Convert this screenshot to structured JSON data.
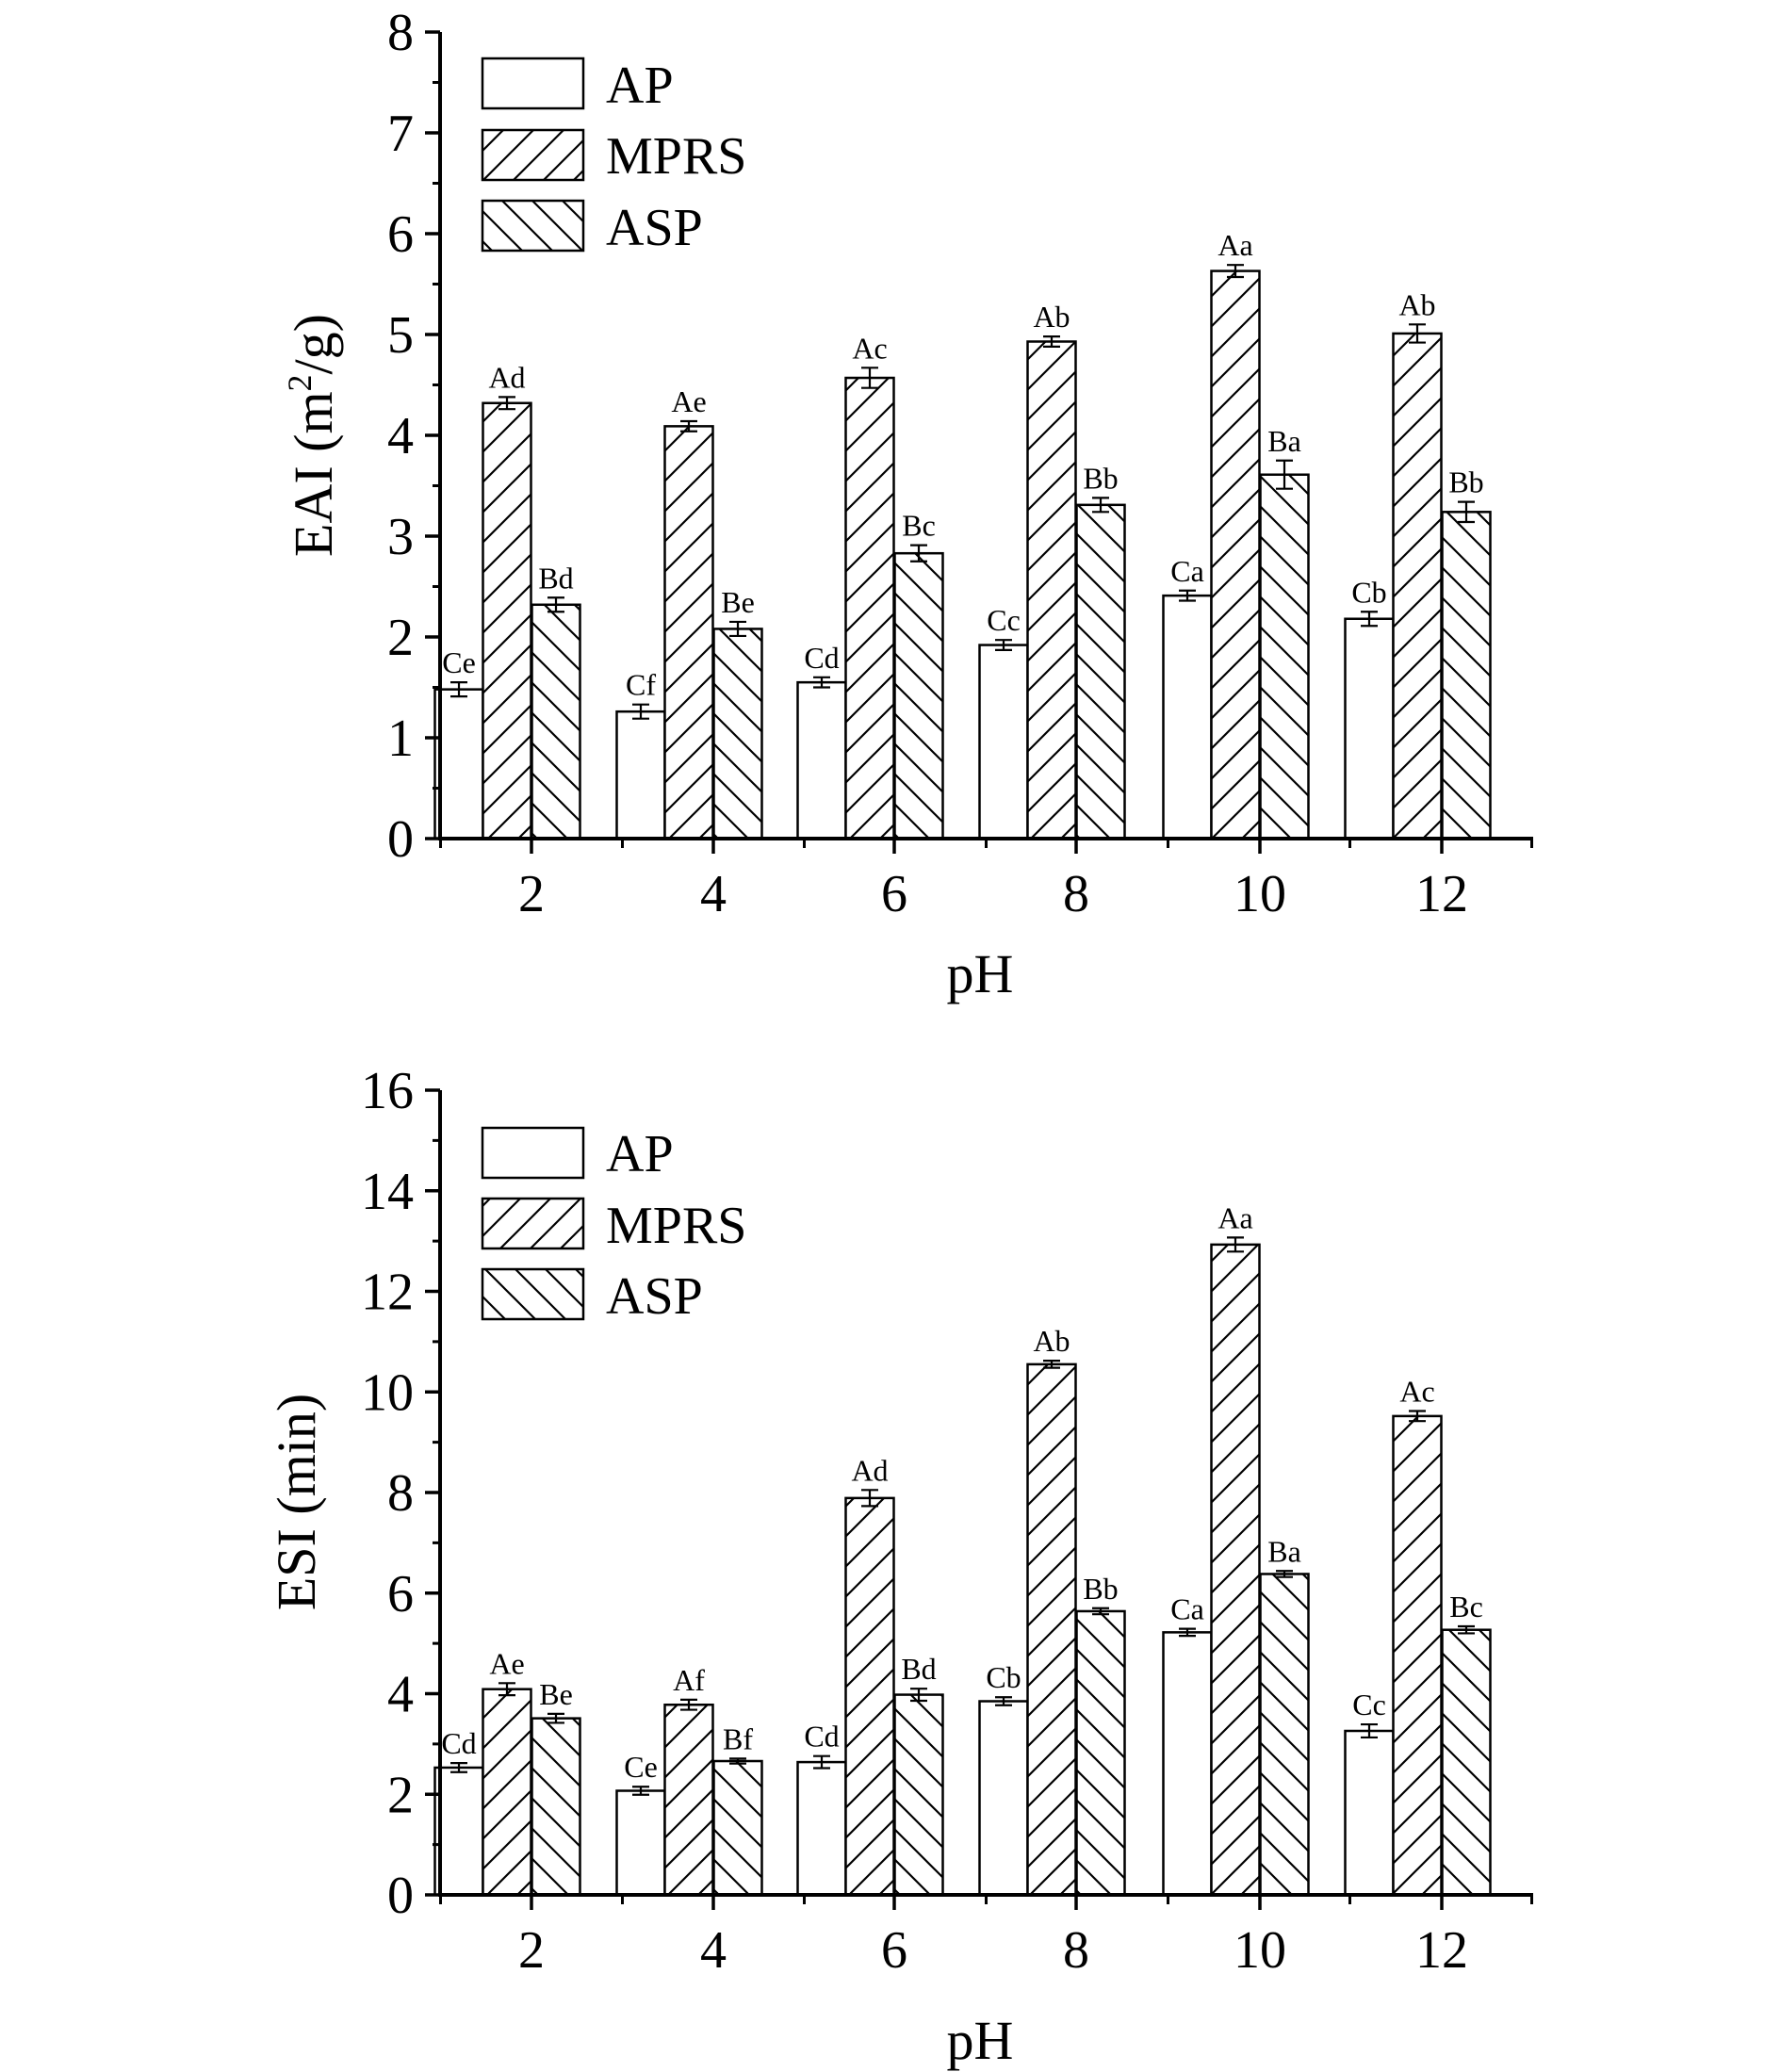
{
  "colors": {
    "ink": "#000000",
    "background": "#ffffff"
  },
  "chart_data": [
    {
      "type": "bar",
      "id": "eai",
      "title": "",
      "xlabel": "pH",
      "ylabel": "EAI (m²/g)",
      "ylabel_main": "EAI (m",
      "ylabel_sup": "2",
      "ylabel_tail": "/g)",
      "ylim": [
        0,
        8
      ],
      "yticks": [
        0,
        1,
        2,
        3,
        4,
        5,
        6,
        7,
        8
      ],
      "categories": [
        "2",
        "4",
        "6",
        "8",
        "10",
        "12"
      ],
      "legend_position": "top-left",
      "series": [
        {
          "name": "AP",
          "pattern": "none",
          "values": [
            1.48,
            1.26,
            1.55,
            1.92,
            2.41,
            2.18
          ],
          "errors": [
            0.07,
            0.07,
            0.05,
            0.05,
            0.05,
            0.07
          ],
          "labels": [
            "Ce",
            "Cf",
            "Cd",
            "Cc",
            "Ca",
            "Cb"
          ]
        },
        {
          "name": "MPRS",
          "pattern": "forward-diagonal",
          "values": [
            4.32,
            4.09,
            4.57,
            4.93,
            5.63,
            5.01
          ],
          "errors": [
            0.06,
            0.05,
            0.1,
            0.05,
            0.06,
            0.09
          ],
          "labels": [
            "Ad",
            "Ae",
            "Ac",
            "Ab",
            "Aa",
            "Ab"
          ]
        },
        {
          "name": "ASP",
          "pattern": "backward-diagonal",
          "values": [
            2.32,
            2.08,
            2.83,
            3.31,
            3.61,
            3.24
          ],
          "errors": [
            0.07,
            0.07,
            0.08,
            0.07,
            0.14,
            0.1
          ],
          "labels": [
            "Bd",
            "Be",
            "Bc",
            "Bb",
            "Ba",
            "Bb"
          ]
        }
      ]
    },
    {
      "type": "bar",
      "id": "esi",
      "title": "",
      "xlabel": "pH",
      "ylabel": "ESI (min)",
      "ylim": [
        0,
        16
      ],
      "yticks": [
        0,
        2,
        4,
        6,
        8,
        10,
        12,
        14,
        16
      ],
      "categories": [
        "2",
        "4",
        "6",
        "8",
        "10",
        "12"
      ],
      "legend_position": "top-left",
      "series": [
        {
          "name": "AP",
          "pattern": "none",
          "values": [
            2.53,
            2.07,
            2.64,
            3.85,
            5.22,
            3.26
          ],
          "errors": [
            0.09,
            0.08,
            0.12,
            0.08,
            0.07,
            0.13
          ],
          "labels": [
            "Cd",
            "Ce",
            "Cd",
            "Cb",
            "Ca",
            "Cc"
          ]
        },
        {
          "name": "MPRS",
          "pattern": "forward-diagonal",
          "values": [
            4.09,
            3.78,
            7.89,
            10.55,
            12.93,
            9.52
          ],
          "errors": [
            0.12,
            0.1,
            0.16,
            0.07,
            0.14,
            0.1
          ],
          "labels": [
            "Ae",
            "Af",
            "Ad",
            "Ab",
            "Aa",
            "Ac"
          ]
        },
        {
          "name": "ASP",
          "pattern": "backward-diagonal",
          "values": [
            3.51,
            2.66,
            3.98,
            5.64,
            6.38,
            5.27
          ],
          "errors": [
            0.09,
            0.05,
            0.12,
            0.06,
            0.06,
            0.07
          ],
          "labels": [
            "Be",
            "Bf",
            "Bd",
            "Bb",
            "Ba",
            "Bc"
          ]
        }
      ]
    }
  ]
}
